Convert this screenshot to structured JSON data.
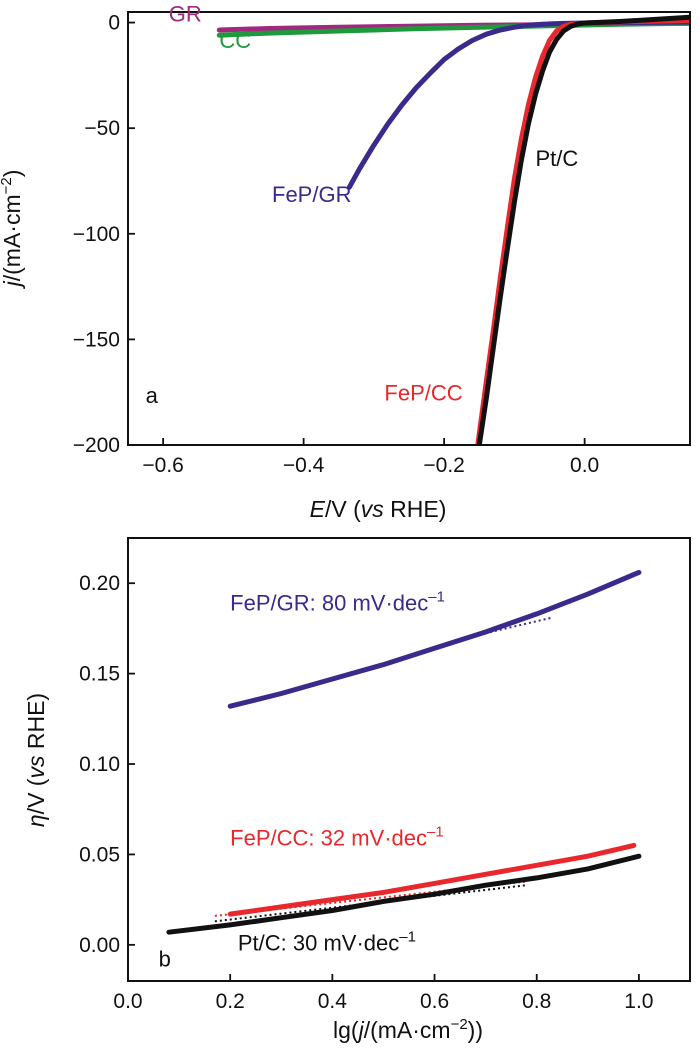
{
  "chart_data": [
    {
      "panel": "a",
      "type": "line",
      "xlabel": {
        "italic": "E",
        "rest": "/V (",
        "vs": "vs",
        "end": " RHE)"
      },
      "ylabel": {
        "italic": "j",
        "rest": "/(mA·cm",
        "sup": "−2",
        "end": ")"
      },
      "xlim": [
        -0.65,
        0.15
      ],
      "ylim": [
        -200,
        5
      ],
      "xticks": [
        -0.6,
        -0.4,
        -0.2,
        0.0
      ],
      "xtick_labels": [
        "−0.6",
        "−0.4",
        "−0.2",
        "0.0"
      ],
      "yticks": [
        0,
        -50,
        -100,
        -150,
        -200
      ],
      "ytick_labels": [
        "0",
        "−50",
        "−100",
        "−150",
        "−200"
      ],
      "series": [
        {
          "name": "GR",
          "color": "#a0287e",
          "x": [
            -0.52,
            -0.45,
            -0.35,
            -0.25,
            -0.15,
            -0.05,
            0.05,
            0.15
          ],
          "y": [
            -3.5,
            -2.8,
            -2.2,
            -1.7,
            -1.3,
            -1.0,
            -0.6,
            -0.3
          ]
        },
        {
          "name": "CC",
          "color": "#1e9a3c",
          "x": [
            -0.52,
            -0.45,
            -0.35,
            -0.25,
            -0.15,
            -0.05,
            0.05,
            0.15
          ],
          "y": [
            -6.0,
            -5.0,
            -4.0,
            -3.0,
            -2.2,
            -1.5,
            -0.8,
            -0.3
          ]
        },
        {
          "name": "FeP/GR",
          "color": "#3a2a8c",
          "x": [
            -0.335,
            -0.32,
            -0.3,
            -0.28,
            -0.26,
            -0.24,
            -0.22,
            -0.2,
            -0.18,
            -0.16,
            -0.14,
            -0.12,
            -0.1,
            -0.08,
            -0.06,
            -0.04,
            -0.02,
            0.0,
            0.05,
            0.15
          ],
          "y": [
            -78,
            -69,
            -58,
            -48,
            -39,
            -31,
            -24,
            -17.5,
            -12.5,
            -8.5,
            -5.5,
            -3.5,
            -2.2,
            -1.3,
            -0.8,
            -0.5,
            -0.3,
            -0.2,
            0.0,
            0.2
          ]
        },
        {
          "name": "FeP/CC",
          "color": "#e8282c",
          "x": [
            -0.152,
            -0.14,
            -0.13,
            -0.12,
            -0.11,
            -0.1,
            -0.09,
            -0.08,
            -0.07,
            -0.06,
            -0.05,
            -0.04,
            -0.03,
            -0.02,
            0.0,
            0.05,
            0.15
          ],
          "y": [
            -200,
            -170,
            -146,
            -121,
            -97,
            -74,
            -55,
            -39,
            -26,
            -16,
            -8.5,
            -4.0,
            -1.8,
            -0.8,
            -0.2,
            0.3,
            1.0
          ]
        },
        {
          "name": "Pt/C",
          "color": "#111111",
          "x": [
            -0.15,
            -0.14,
            -0.13,
            -0.12,
            -0.11,
            -0.1,
            -0.09,
            -0.08,
            -0.07,
            -0.06,
            -0.05,
            -0.04,
            -0.03,
            -0.02,
            -0.01,
            0.0,
            0.05,
            0.15
          ],
          "y": [
            -200,
            -178,
            -154,
            -130,
            -107,
            -85,
            -65,
            -48,
            -34,
            -23,
            -14,
            -8,
            -4,
            -1.8,
            -0.7,
            -0.2,
            0.5,
            2.5
          ]
        }
      ],
      "annotations": [
        {
          "text": "GR",
          "x": -0.545,
          "y": 0.5,
          "color": "#a0287e",
          "anchor": "end"
        },
        {
          "text": "CC",
          "x": -0.52,
          "y": -12,
          "color": "#1e9a3c",
          "anchor": "start"
        },
        {
          "text": "FeP/GR",
          "x": -0.445,
          "y": -85,
          "color": "#3a2a8c",
          "anchor": "start"
        },
        {
          "text": "Pt/C",
          "x": -0.07,
          "y": -68,
          "color": "#111111",
          "anchor": "start"
        },
        {
          "text": "FeP/CC",
          "x": -0.285,
          "y": -179,
          "color": "#e8282c",
          "anchor": "start"
        },
        {
          "text": "a",
          "x": -0.625,
          "y": -180,
          "color": "#111111",
          "anchor": "start"
        }
      ]
    },
    {
      "panel": "b",
      "type": "line",
      "xlabel": {
        "text": "lg(",
        "italic": "j",
        "rest": "/(mA·cm",
        "sup": "−2",
        "end": "))"
      },
      "ylabel": {
        "italic": "η",
        "rest": "/V (",
        "vs": "vs",
        "end": " RHE)"
      },
      "xlim": [
        0.0,
        1.1
      ],
      "ylim": [
        -0.02,
        0.225
      ],
      "xticks": [
        0.0,
        0.2,
        0.4,
        0.6,
        0.8,
        1.0
      ],
      "xtick_labels": [
        "0.0",
        "0.2",
        "0.4",
        "0.6",
        "0.8",
        "1.0"
      ],
      "yticks": [
        0.0,
        0.05,
        0.1,
        0.15,
        0.2
      ],
      "ytick_labels": [
        "0.00",
        "0.05",
        "0.10",
        "0.15",
        "0.20"
      ],
      "series": [
        {
          "name": "FeP/GR",
          "color": "#3a2a8c",
          "x": [
            0.2,
            0.3,
            0.4,
            0.5,
            0.6,
            0.7,
            0.8,
            0.9,
            1.0
          ],
          "y": [
            0.132,
            0.139,
            0.147,
            0.155,
            0.164,
            0.173,
            0.183,
            0.194,
            0.206
          ]
        },
        {
          "name": "FeP/CC",
          "color": "#e8282c",
          "x": [
            0.2,
            0.3,
            0.4,
            0.5,
            0.6,
            0.7,
            0.8,
            0.9,
            0.99
          ],
          "y": [
            0.017,
            0.021,
            0.025,
            0.029,
            0.034,
            0.039,
            0.044,
            0.049,
            0.055
          ]
        },
        {
          "name": "Pt/C",
          "color": "#111111",
          "x": [
            0.08,
            0.2,
            0.3,
            0.4,
            0.5,
            0.6,
            0.7,
            0.8,
            0.9,
            1.0
          ],
          "y": [
            0.007,
            0.011,
            0.015,
            0.019,
            0.024,
            0.028,
            0.033,
            0.037,
            0.042,
            0.049
          ]
        }
      ],
      "fits": [
        {
          "color": "#3a2a8c",
          "x": [
            0.68,
            0.83
          ],
          "y": [
            0.171,
            0.181
          ]
        },
        {
          "color": "#e8282c",
          "x": [
            0.17,
            0.78
          ],
          "y": [
            0.016,
            0.035
          ]
        },
        {
          "color": "#111111",
          "x": [
            0.17,
            0.78
          ],
          "y": [
            0.013,
            0.033
          ]
        }
      ],
      "annotations": [
        {
          "text": "FeP/GR: 80 mV·dec",
          "sup": "–1",
          "x": 0.2,
          "y": 0.185,
          "color": "#3a2a8c"
        },
        {
          "text": "FeP/CC: 32 mV·dec",
          "sup": "–1",
          "x": 0.2,
          "y": 0.055,
          "color": "#e8282c"
        },
        {
          "text": "Pt/C: 30 mV·dec",
          "sup": "–1",
          "x": 0.215,
          "y": -0.003,
          "color": "#111111"
        },
        {
          "text": "b",
          "x": 0.06,
          "y": -0.012,
          "color": "#111111"
        }
      ]
    }
  ]
}
